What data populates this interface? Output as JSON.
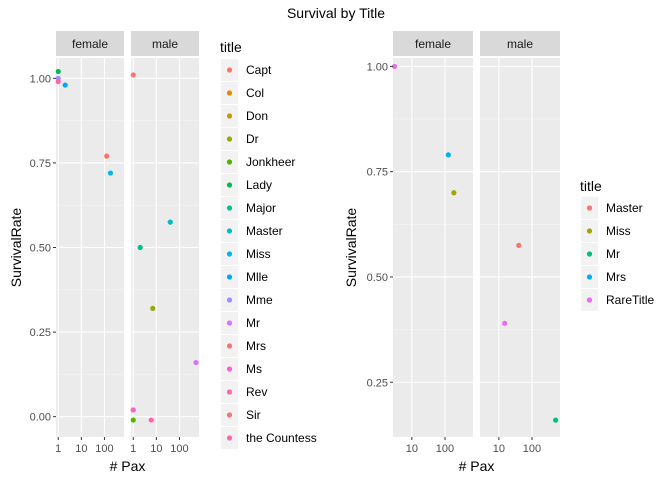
{
  "figure": {
    "title": "Survival by Title"
  },
  "colors": {
    "panel_bg": "#ebebeb",
    "strip_bg": "#d9d9d9",
    "grid_major": "#ffffff",
    "grid_minor": "#f5f5f5"
  },
  "chart_data": [
    {
      "type": "scatter",
      "title": "",
      "xlabel": "# Pax",
      "ylabel": "SurvivalRate",
      "x_scale": "log10",
      "xlim": [
        0.8,
        700
      ],
      "ylim": [
        -0.06,
        1.06
      ],
      "x_ticks": [
        1,
        10,
        100
      ],
      "x_tick_labels": [
        "1",
        "10",
        "100"
      ],
      "y_ticks": [
        0,
        0.25,
        0.5,
        0.75,
        1
      ],
      "y_tick_labels": [
        "0.00",
        "0.25",
        "0.50",
        "0.75",
        "1.00"
      ],
      "facets": [
        "female",
        "male"
      ],
      "grid": true,
      "legend_position": "right",
      "legend_title": "title",
      "series": [
        {
          "name": "Capt",
          "color": "#F8766D",
          "points": []
        },
        {
          "name": "Col",
          "color": "#E38900",
          "points": [
            {
              "facet": "male",
              "x": 2,
              "y": 0.5
            }
          ]
        },
        {
          "name": "Don",
          "color": "#C49A00",
          "points": [
            {
              "facet": "male",
              "x": 1,
              "y": 0.02
            }
          ]
        },
        {
          "name": "Dr",
          "color": "#99A800",
          "points": [
            {
              "facet": "male",
              "x": 7,
              "y": 0.32
            }
          ]
        },
        {
          "name": "Jonkheer",
          "color": "#53B400",
          "points": [
            {
              "facet": "male",
              "x": 1,
              "y": -0.01
            }
          ]
        },
        {
          "name": "Lady",
          "color": "#00BC56",
          "points": [
            {
              "facet": "female",
              "x": 1,
              "y": 1.02
            }
          ]
        },
        {
          "name": "Major",
          "color": "#00C094",
          "points": [
            {
              "facet": "male",
              "x": 2,
              "y": 0.5
            }
          ]
        },
        {
          "name": "Master",
          "color": "#00BFC4",
          "points": [
            {
              "facet": "male",
              "x": 40,
              "y": 0.575
            }
          ]
        },
        {
          "name": "Miss",
          "color": "#00B6EB",
          "points": [
            {
              "facet": "female",
              "x": 182,
              "y": 0.72
            }
          ]
        },
        {
          "name": "Mlle",
          "color": "#06A4FF",
          "points": [
            {
              "facet": "female",
              "x": 2,
              "y": 0.98
            }
          ]
        },
        {
          "name": "Mme",
          "color": "#A58AFF",
          "points": [
            {
              "facet": "female",
              "x": 1,
              "y": 1.0
            }
          ]
        },
        {
          "name": "Mr",
          "color": "#DF70F8",
          "points": [
            {
              "facet": "male",
              "x": 517,
              "y": 0.16
            }
          ]
        },
        {
          "name": "Mrs",
          "color": "#F8766D",
          "points": [
            {
              "facet": "female",
              "x": 125,
              "y": 0.77
            }
          ]
        },
        {
          "name": "Ms",
          "color": "#FB61D7",
          "points": [
            {
              "facet": "male",
              "x": 1,
              "y": 0.02
            }
          ]
        },
        {
          "name": "Rev",
          "color": "#FF66A8",
          "points": [
            {
              "facet": "male",
              "x": 6,
              "y": -0.01
            }
          ]
        },
        {
          "name": "Sir",
          "color": "#F8766D",
          "points": [
            {
              "facet": "male",
              "x": 1,
              "y": 1.01
            }
          ]
        },
        {
          "name": "the Countess",
          "color": "#FF65AC",
          "points": [
            {
              "facet": "female",
              "x": 1,
              "y": 0.99
            }
          ]
        }
      ]
    },
    {
      "type": "scatter",
      "title": "",
      "xlabel": "# Pax",
      "ylabel": "SurvivalRate",
      "x_scale": "log10",
      "xlim": [
        2.7,
        700
      ],
      "ylim": [
        0.12,
        1.02
      ],
      "x_ticks": [
        10,
        100
      ],
      "x_tick_labels": [
        "10",
        "100"
      ],
      "y_ticks": [
        0.25,
        0.5,
        0.75,
        1
      ],
      "y_tick_labels": [
        "0.25",
        "0.50",
        "0.75",
        "1.00"
      ],
      "facets": [
        "female",
        "male"
      ],
      "grid": true,
      "legend_position": "right",
      "legend_title": "title",
      "series": [
        {
          "name": "Master",
          "color": "#F8766D",
          "points": [
            {
              "facet": "male",
              "x": 40,
              "y": 0.575
            }
          ]
        },
        {
          "name": "Miss",
          "color": "#A3A500",
          "points": [
            {
              "facet": "female",
              "x": 185,
              "y": 0.7
            }
          ]
        },
        {
          "name": "Mr",
          "color": "#00BF7D",
          "points": [
            {
              "facet": "male",
              "x": 517,
              "y": 0.16
            }
          ]
        },
        {
          "name": "Mrs",
          "color": "#00B0F6",
          "points": [
            {
              "facet": "female",
              "x": 126,
              "y": 0.79
            }
          ]
        },
        {
          "name": "RareTitle",
          "color": "#E76BF3",
          "points": [
            {
              "facet": "female",
              "x": 3,
              "y": 1.0
            },
            {
              "facet": "male",
              "x": 15,
              "y": 0.39
            }
          ]
        }
      ]
    }
  ]
}
